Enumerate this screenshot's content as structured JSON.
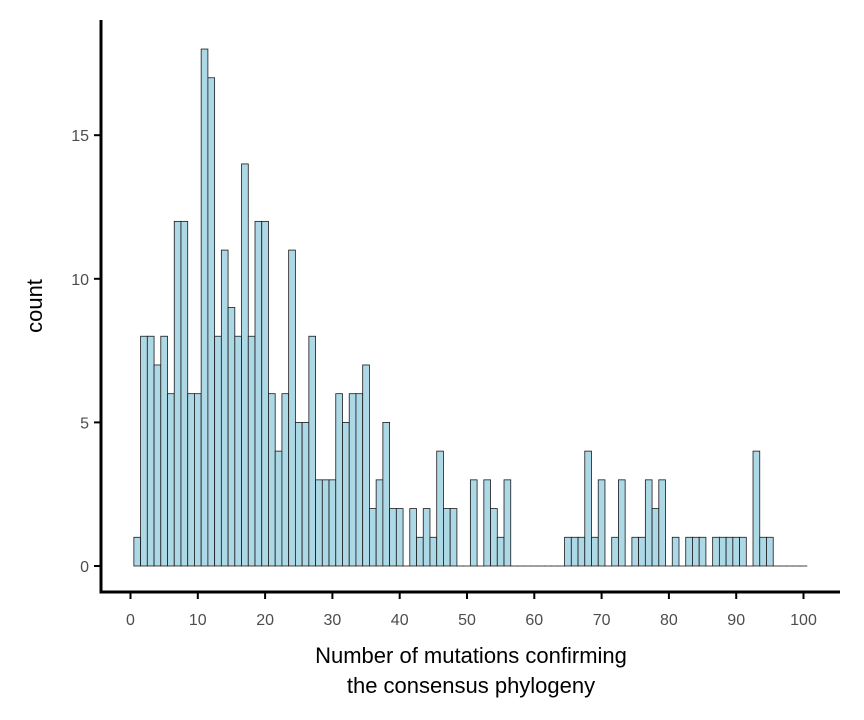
{
  "chart_data": {
    "type": "bar",
    "xlabel_lines": [
      "Number of mutations confirming",
      "the consensus phylogeny"
    ],
    "ylabel": "count",
    "xlim": [
      0,
      101
    ],
    "ylim": [
      0,
      18
    ],
    "x_ticks": [
      0,
      10,
      20,
      30,
      40,
      50,
      60,
      70,
      80,
      90,
      100
    ],
    "y_ticks": [
      0,
      5,
      10,
      15
    ],
    "grid": false,
    "bar_fill": "#add8e6",
    "bar_stroke": "#1a1a1a",
    "bins": {
      "start": 0.5,
      "width": 1,
      "counts": [
        1,
        8,
        8,
        7,
        8,
        6,
        12,
        12,
        6,
        6,
        18,
        17,
        8,
        11,
        9,
        8,
        14,
        8,
        12,
        12,
        6,
        4,
        6,
        11,
        5,
        5,
        8,
        3,
        3,
        3,
        6,
        5,
        6,
        6,
        7,
        2,
        3,
        5,
        2,
        2,
        0,
        2,
        1,
        2,
        1,
        4,
        2,
        2,
        0,
        0,
        3,
        0,
        3,
        2,
        1,
        3,
        0,
        0,
        0,
        0,
        0,
        0,
        0,
        0,
        1,
        1,
        1,
        4,
        1,
        3,
        0,
        1,
        3,
        0,
        1,
        1,
        3,
        2,
        3,
        0,
        1,
        0,
        1,
        1,
        1,
        0,
        1,
        1,
        1,
        1,
        1,
        0,
        4,
        1,
        1,
        0,
        0,
        0,
        0,
        0
      ]
    }
  }
}
